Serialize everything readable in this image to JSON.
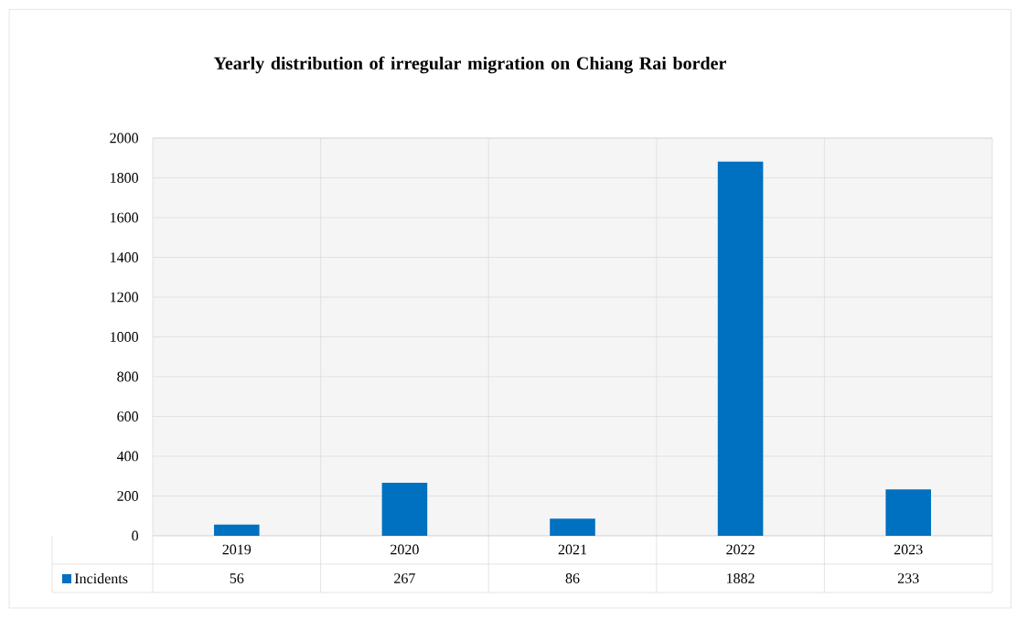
{
  "chart_data": {
    "type": "bar",
    "title": "Yearly distribution of irregular migration on Chiang Rai border",
    "categories": [
      "2019",
      "2020",
      "2021",
      "2022",
      "2023"
    ],
    "series": [
      {
        "name": "Incidents",
        "color": "#0070c0",
        "values": [
          56,
          267,
          86,
          1882,
          233
        ]
      }
    ],
    "ylim": [
      0,
      2000
    ],
    "yticks": [
      0,
      200,
      400,
      600,
      800,
      1000,
      1200,
      1400,
      1600,
      1800,
      2000
    ],
    "grid": true,
    "legend": "bottom",
    "data_labels": true
  }
}
